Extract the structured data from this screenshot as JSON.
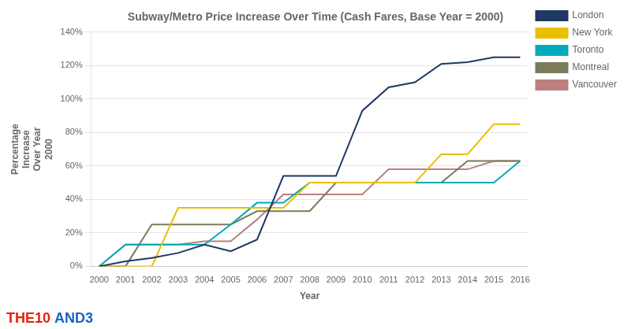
{
  "chart_data": {
    "type": "line",
    "title": "Subway/Metro Price Increase Over Time (Cash Fares, Base Year = 2000)",
    "xlabel": "Year",
    "ylabel": "Percentage\nIncrease\nOver Year\n2000",
    "x": [
      2000,
      2001,
      2002,
      2003,
      2004,
      2005,
      2006,
      2007,
      2008,
      2009,
      2010,
      2011,
      2012,
      2013,
      2014,
      2015,
      2016
    ],
    "series": [
      {
        "name": "London",
        "color": "#1F3864",
        "values": [
          0,
          3,
          5,
          8,
          13,
          9,
          16,
          54,
          54,
          54,
          93,
          107,
          110,
          121,
          122,
          125,
          125
        ]
      },
      {
        "name": "New York",
        "color": "#E8C000",
        "values": [
          0,
          0,
          0,
          35,
          35,
          35,
          35,
          35,
          50,
          50,
          50,
          50,
          50,
          67,
          67,
          85,
          85
        ]
      },
      {
        "name": "Toronto",
        "color": "#00AABC",
        "values": [
          0,
          13,
          13,
          13,
          13,
          25,
          38,
          38,
          50,
          50,
          50,
          50,
          50,
          50,
          50,
          50,
          63
        ]
      },
      {
        "name": "Montreal",
        "color": "#7B7B5B",
        "values": [
          0,
          0,
          25,
          25,
          25,
          25,
          33,
          33,
          33,
          50,
          50,
          50,
          50,
          50,
          63,
          63,
          63
        ]
      },
      {
        "name": "Vancouver",
        "color": "#BC8080",
        "values": [
          0,
          13,
          13,
          13,
          15,
          15,
          28,
          43,
          43,
          43,
          43,
          58,
          58,
          58,
          58,
          63,
          63
        ]
      }
    ],
    "xlim": [
      1999.7,
      2016.3
    ],
    "xticks": [
      2000,
      2001,
      2002,
      2003,
      2004,
      2005,
      2006,
      2007,
      2008,
      2009,
      2010,
      2011,
      2012,
      2013,
      2014,
      2015,
      2016
    ],
    "ylim": [
      0,
      140
    ],
    "yticks": [
      {
        "value": 0,
        "label": "0%"
      },
      {
        "value": 20,
        "label": "20%"
      },
      {
        "value": 40,
        "label": "40%"
      },
      {
        "value": 60,
        "label": "60%"
      },
      {
        "value": 80,
        "label": "80%"
      },
      {
        "value": 100,
        "label": "100%"
      },
      {
        "value": 120,
        "label": "120%"
      },
      {
        "value": 140,
        "label": "140%"
      }
    ],
    "grid": "y",
    "legend": "right",
    "annotations": [
      {
        "text": "THE10",
        "color": "#E8220A"
      },
      {
        "text": " AND3",
        "color": "#1565C0"
      }
    ]
  }
}
